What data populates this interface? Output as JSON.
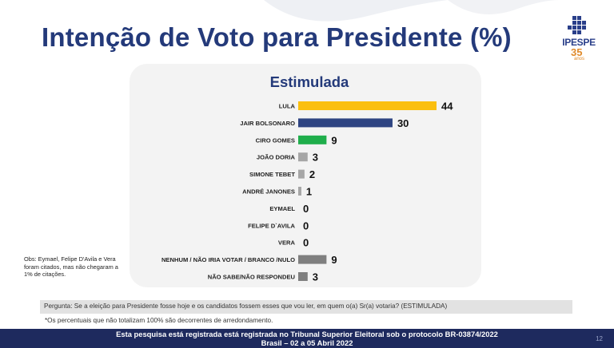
{
  "page": {
    "title": "Intenção de Voto para Presidente (%)",
    "logo": {
      "name": "IPESPE",
      "years": "35",
      "years_label": "anos"
    },
    "obs": "Obs: Eymael, Felipe D'Avila e Vera foram citados, mas não chegaram a 1% de citações.",
    "question": "Pergunta:  Se a eleição para Presidente fosse hoje e os candidatos fossem esses que vou ler, em quem o(a) Sr(a) votaria? (ESTIMULADA)",
    "note": "*Os percentuais que não totalizam 100% são decorrentes de arredondamento.",
    "footer_line1": "Esta pesquisa está registrada está registrada no Tribunal Superior Eleitoral sob o protocolo BR-03874/2022",
    "footer_line2": "Brasil – 02 a 05 Abril 2022",
    "page_number": "12"
  },
  "chart_data": {
    "type": "bar",
    "orientation": "horizontal",
    "title": "Estimulada",
    "categories": [
      "LULA",
      "JAIR BOLSONARO",
      "CIRO GOMES",
      "JOÃO DORIA",
      "SIMONE TEBET",
      "ANDRÉ JANONES",
      "EYMAEL",
      "FELIPE D`AVILA",
      "VERA",
      "NENHUM / NÃO IRIA VOTAR / BRANCO /NULO",
      "NÃO SABE/NÃO RESPONDEU"
    ],
    "values": [
      44,
      30,
      9,
      3,
      2,
      1,
      0,
      0,
      0,
      9,
      3
    ],
    "colors": [
      "#fbbf0f",
      "#2e4482",
      "#1fae4b",
      "#a6a6a6",
      "#a6a6a6",
      "#a6a6a6",
      "#a6a6a6",
      "#a6a6a6",
      "#a6a6a6",
      "#7f7f7f",
      "#7f7f7f"
    ],
    "xlim": [
      0,
      44
    ],
    "grid": false,
    "data_labels": true
  }
}
